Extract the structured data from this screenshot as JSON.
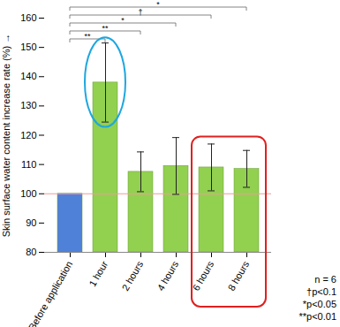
{
  "chart_data": {
    "type": "bar",
    "y_label": "Skin surface water content increase rate (%)",
    "categories": [
      "Before application",
      "1 hour",
      "2 hours",
      "4 hours",
      "6 hours",
      "8 hours"
    ],
    "values": [
      100,
      138,
      107.5,
      109.5,
      109,
      108.5
    ],
    "errors": [
      null,
      13.5,
      6.8,
      9.7,
      8,
      6.3
    ],
    "colors": [
      "#4f81d9",
      "#92d050",
      "#92d050",
      "#92d050",
      "#92d050",
      "#92d050"
    ],
    "reference_line": 100,
    "ylim": [
      80,
      160
    ],
    "yticks": [
      80,
      90,
      100,
      110,
      120,
      130,
      140,
      150,
      160
    ],
    "significance": [
      {
        "from": "Before application",
        "to": "1 hour",
        "label": "**"
      },
      {
        "from": "Before application",
        "to": "2 hours",
        "label": "**"
      },
      {
        "from": "Before application",
        "to": "4 hours",
        "label": "*"
      },
      {
        "from": "Before application",
        "to": "6 hours",
        "label": "†"
      },
      {
        "from": "Before application",
        "to": "8 hours",
        "label": "*"
      }
    ],
    "notes": [
      "n = 6",
      "†p<0.1",
      "*p<0.05",
      "**p<0.01"
    ]
  }
}
